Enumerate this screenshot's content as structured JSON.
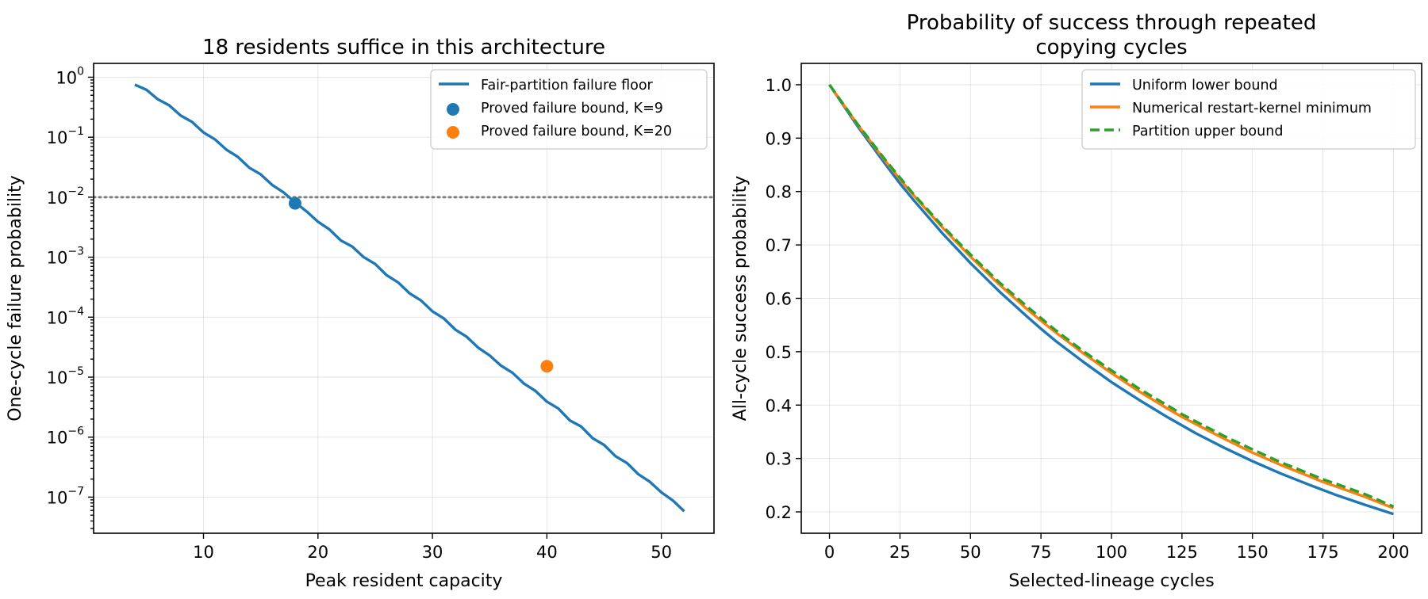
{
  "chart_data": [
    {
      "type": "line",
      "title": "18 residents suffice in this architecture",
      "xlabel": "Peak resident capacity",
      "ylabel": "One-cycle failure probability",
      "xlim": [
        0.4,
        54.6
      ],
      "ylim": [
        2.5e-08,
        1.7
      ],
      "yscale": "log",
      "grid": true,
      "legend": "top-right",
      "xticks": [
        10,
        20,
        30,
        40,
        50
      ],
      "yticks": [
        {
          "value": 1,
          "base": "10",
          "exp": "0"
        },
        {
          "value": 0.1,
          "base": "10",
          "exp": "−1"
        },
        {
          "value": 0.01,
          "base": "10",
          "exp": "−2"
        },
        {
          "value": 0.001,
          "base": "10",
          "exp": "−3"
        },
        {
          "value": 0.0001,
          "base": "10",
          "exp": "−4"
        },
        {
          "value": 1e-05,
          "base": "10",
          "exp": "−5"
        },
        {
          "value": 1e-06,
          "base": "10",
          "exp": "−6"
        },
        {
          "value": 1e-07,
          "base": "10",
          "exp": "−7"
        }
      ],
      "reference_line": {
        "y": 0.01,
        "color": "#808080",
        "style": "dotted"
      },
      "series": [
        {
          "name": "Fair-partition failure floor",
          "color": "#1f77b4",
          "kind": "line",
          "x": [
            4,
            5,
            6,
            7,
            8,
            9,
            10,
            11,
            12,
            13,
            14,
            15,
            16,
            17,
            18,
            19,
            20,
            21,
            22,
            23,
            24,
            25,
            26,
            27,
            28,
            29,
            30,
            31,
            32,
            33,
            34,
            35,
            36,
            37,
            38,
            39,
            40,
            41,
            42,
            43,
            44,
            45,
            46,
            47,
            48,
            49,
            50,
            51,
            52
          ],
          "y": [
            0.75,
            0.62,
            0.43,
            0.34,
            0.23,
            0.18,
            0.12,
            0.092,
            0.062,
            0.047,
            0.031,
            0.024,
            0.016,
            0.012,
            0.0082,
            0.0058,
            0.0039,
            0.0029,
            0.0019,
            0.0015,
            0.001,
            0.00077,
            0.0005,
            0.00038,
            0.00025,
            0.00019,
            0.000125,
            9.5e-05,
            6.2e-05,
            4.7e-05,
            3.1e-05,
            2.3e-05,
            1.55e-05,
            1.18e-05,
            7.8e-06,
            5.9e-06,
            3.9e-06,
            3e-06,
            1.9e-06,
            1.5e-06,
            9.6e-07,
            7.4e-07,
            4.8e-07,
            3.7e-07,
            2.4e-07,
            1.8e-07,
            1.2e-07,
            8.8e-08,
            5.8e-08
          ]
        },
        {
          "name": "Proved failure bound, K=9",
          "color": "#1f77b4",
          "kind": "point",
          "x": [
            18
          ],
          "y": [
            0.0079
          ]
        },
        {
          "name": "Proved failure bound, K=20",
          "color": "#ff7f0e",
          "kind": "point",
          "x": [
            40
          ],
          "y": [
            1.52e-05
          ]
        }
      ]
    },
    {
      "type": "line",
      "title": "Probability of success through repeated\ncopying cycles",
      "xlabel": "Selected-lineage cycles",
      "ylabel": "All-cycle success probability",
      "xlim": [
        -10,
        210
      ],
      "ylim": [
        0.16,
        1.04
      ],
      "grid": true,
      "legend": "top-right",
      "xticks": [
        0,
        25,
        50,
        75,
        100,
        125,
        150,
        175,
        200
      ],
      "yticks": [
        0.2,
        0.3,
        0.4,
        0.5,
        0.6,
        0.7,
        0.8,
        0.9,
        1.0
      ],
      "series": [
        {
          "name": "Uniform lower bound",
          "color": "#1f77b4",
          "style": "solid",
          "x": [
            0,
            10,
            20,
            25,
            30,
            40,
            50,
            60,
            70,
            75,
            80,
            90,
            100,
            110,
            120,
            125,
            130,
            140,
            150,
            160,
            170,
            175,
            180,
            190,
            200
          ],
          "y": [
            1.0,
            0.922,
            0.85,
            0.815,
            0.783,
            0.722,
            0.666,
            0.614,
            0.566,
            0.543,
            0.521,
            0.481,
            0.443,
            0.409,
            0.377,
            0.362,
            0.347,
            0.32,
            0.295,
            0.272,
            0.251,
            0.241,
            0.231,
            0.213,
            0.196
          ]
        },
        {
          "name": "Numerical restart-kernel minimum",
          "color": "#ff7f0e",
          "style": "solid",
          "x": [
            0,
            10,
            20,
            25,
            30,
            40,
            50,
            60,
            70,
            75,
            80,
            90,
            100,
            110,
            120,
            125,
            130,
            140,
            150,
            160,
            170,
            175,
            180,
            190,
            200
          ],
          "y": [
            1.0,
            0.925,
            0.856,
            0.823,
            0.792,
            0.733,
            0.678,
            0.627,
            0.58,
            0.558,
            0.537,
            0.497,
            0.46,
            0.425,
            0.393,
            0.378,
            0.364,
            0.337,
            0.311,
            0.288,
            0.267,
            0.256,
            0.247,
            0.228,
            0.207
          ]
        },
        {
          "name": "Partition upper bound",
          "color": "#2ca02c",
          "style": "dashed",
          "x": [
            0,
            10,
            20,
            25,
            30,
            40,
            50,
            60,
            70,
            75,
            80,
            90,
            100,
            110,
            120,
            125,
            130,
            140,
            150,
            160,
            170,
            175,
            180,
            190,
            200
          ],
          "y": [
            1.0,
            0.926,
            0.858,
            0.826,
            0.794,
            0.736,
            0.682,
            0.631,
            0.585,
            0.563,
            0.541,
            0.501,
            0.465,
            0.43,
            0.399,
            0.383,
            0.369,
            0.342,
            0.317,
            0.293,
            0.272,
            0.261,
            0.252,
            0.233,
            0.21
          ]
        }
      ]
    }
  ]
}
